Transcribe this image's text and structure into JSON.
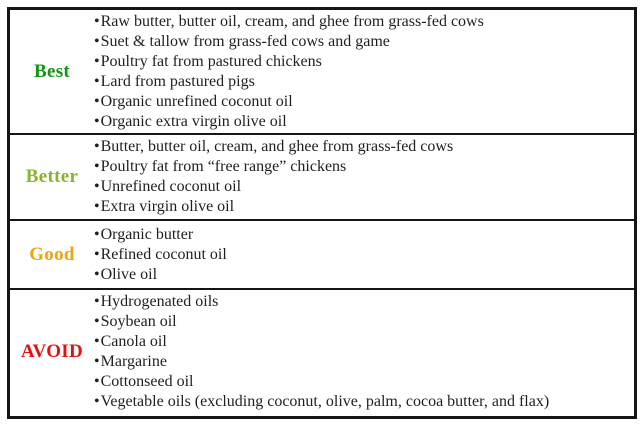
{
  "table": {
    "bullet_char": "•",
    "border_color": "#151515",
    "text_color": "#1f1f1f",
    "rows": [
      {
        "label": "Best",
        "label_color": "#149414",
        "items": [
          "Raw butter, butter oil, cream, and ghee from grass-fed cows",
          "Suet & tallow from grass-fed cows and game",
          "Poultry fat from pastured chickens",
          "Lard from pastured pigs",
          "Organic unrefined coconut oil",
          "Organic extra virgin olive oil"
        ]
      },
      {
        "label": "Better",
        "label_color": "#8bb42e",
        "items": [
          "Butter, butter oil, cream, and ghee from grass-fed cows",
          "Poultry fat from “free range” chickens",
          "Unrefined coconut oil",
          "Extra virgin olive oil"
        ]
      },
      {
        "label": "Good",
        "label_color": "#f0a30c",
        "items": [
          "Organic butter",
          "Refined coconut oil",
          "Olive oil"
        ]
      },
      {
        "label": "AVOID",
        "label_color": "#e01212",
        "items": [
          "Hydrogenated oils",
          "Soybean oil",
          "Canola oil",
          "Margarine",
          "Cottonseed oil",
          "Vegetable oils (excluding coconut, olive, palm, cocoa butter, and flax)"
        ]
      }
    ]
  }
}
